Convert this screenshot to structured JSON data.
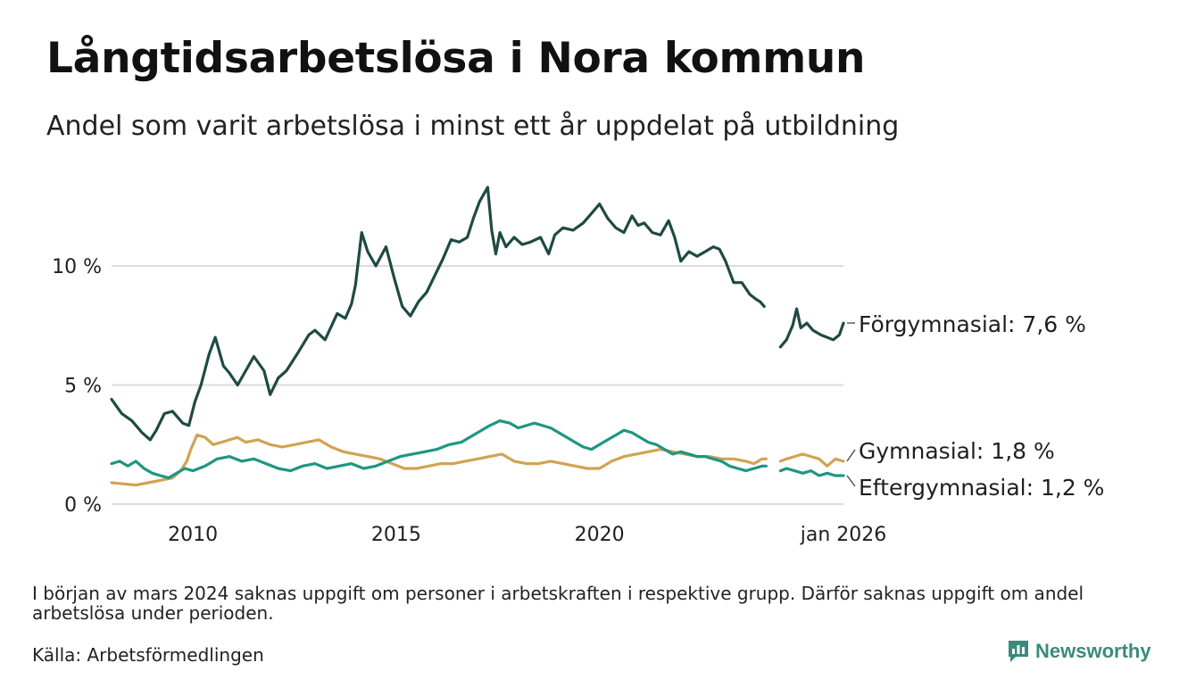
{
  "title": "Långtidsarbetslösa i Nora kommun",
  "subtitle": "Andel som varit arbetslösa i minst ett år uppdelat på utbildning",
  "note": "I början av mars 2024 saknas uppgift om personer i arbetskraften i respektive grupp. Därför saknas uppgift om andel arbetslösa under perioden.",
  "source": "Källa: Arbetsförmedlingen",
  "brand": "Newsworthy",
  "chart_data": {
    "type": "line",
    "title": "Långtidsarbetslösa i Nora kommun",
    "xlabel": "",
    "ylabel": "",
    "xlim": [
      2008.0,
      2026.0
    ],
    "ylim": [
      0,
      13.5
    ],
    "yticks": [
      0,
      5,
      10
    ],
    "ytick_labels": [
      "0 %",
      "5 %",
      "10 %"
    ],
    "xticks": [
      2010,
      2015,
      2020,
      2026.0
    ],
    "xtick_labels": [
      "2010",
      "2015",
      "2020",
      "jan 2026"
    ],
    "gap": [
      2024.15,
      2024.45
    ],
    "series": [
      {
        "name": "Förgymnasial",
        "label": "Förgymnasial: 7,6 %",
        "color": "#1f4a44",
        "x": [
          2008.0,
          2008.25,
          2008.5,
          2008.75,
          2008.95,
          2009.1,
          2009.3,
          2009.5,
          2009.75,
          2009.9,
          2010.05,
          2010.2,
          2010.4,
          2010.55,
          2010.75,
          2010.9,
          2011.1,
          2011.3,
          2011.5,
          2011.75,
          2011.9,
          2012.1,
          2012.3,
          2012.6,
          2012.85,
          2013.0,
          2013.25,
          2013.55,
          2013.75,
          2013.9,
          2014.0,
          2014.15,
          2014.3,
          2014.5,
          2014.75,
          2014.95,
          2015.15,
          2015.35,
          2015.55,
          2015.75,
          2015.95,
          2016.15,
          2016.35,
          2016.55,
          2016.75,
          2016.9,
          2017.05,
          2017.25,
          2017.35,
          2017.45,
          2017.55,
          2017.7,
          2017.9,
          2018.1,
          2018.3,
          2018.55,
          2018.75,
          2018.9,
          2019.1,
          2019.35,
          2019.6,
          2019.8,
          2020.0,
          2020.2,
          2020.4,
          2020.6,
          2020.8,
          2020.95,
          2021.1,
          2021.3,
          2021.5,
          2021.7,
          2021.85,
          2022.0,
          2022.2,
          2022.4,
          2022.6,
          2022.8,
          2022.95,
          2023.1,
          2023.3,
          2023.5,
          2023.7,
          2023.85,
          2023.95,
          2024.05,
          2024.45,
          2024.6,
          2024.75,
          2024.85,
          2024.95,
          2025.1,
          2025.25,
          2025.45,
          2025.6,
          2025.75,
          2025.9,
          2026.0
        ],
        "values": [
          4.4,
          3.8,
          3.5,
          3.0,
          2.7,
          3.1,
          3.8,
          3.9,
          3.4,
          3.3,
          4.3,
          5.0,
          6.3,
          7.0,
          5.8,
          5.5,
          5.0,
          5.6,
          6.2,
          5.6,
          4.6,
          5.3,
          5.6,
          6.4,
          7.1,
          7.3,
          6.9,
          8.0,
          7.8,
          8.4,
          9.2,
          11.4,
          10.6,
          10.0,
          10.8,
          9.5,
          8.3,
          7.9,
          8.5,
          8.9,
          9.6,
          10.3,
          11.1,
          11.0,
          11.2,
          12.0,
          12.7,
          13.3,
          11.5,
          10.5,
          11.4,
          10.8,
          11.2,
          10.9,
          11.0,
          11.2,
          10.5,
          11.3,
          11.6,
          11.5,
          11.8,
          12.2,
          12.6,
          12.0,
          11.6,
          11.4,
          12.1,
          11.7,
          11.8,
          11.4,
          11.3,
          11.9,
          11.2,
          10.2,
          10.6,
          10.4,
          10.6,
          10.8,
          10.7,
          10.2,
          9.3,
          9.3,
          8.8,
          8.6,
          8.5,
          8.3,
          6.6,
          6.9,
          7.5,
          8.2,
          7.4,
          7.6,
          7.3,
          7.1,
          7.0,
          6.9,
          7.1,
          7.6
        ]
      },
      {
        "name": "Gymnasial",
        "label": "Gymnasial: 1,8 %",
        "color": "#d1a352",
        "x": [
          2008.0,
          2008.3,
          2008.6,
          2008.9,
          2009.2,
          2009.5,
          2009.7,
          2009.85,
          2009.95,
          2010.1,
          2010.3,
          2010.5,
          2010.7,
          2010.9,
          2011.1,
          2011.3,
          2011.6,
          2011.9,
          2012.2,
          2012.5,
          2012.8,
          2013.1,
          2013.4,
          2013.7,
          2014.0,
          2014.3,
          2014.6,
          2014.9,
          2015.2,
          2015.5,
          2015.8,
          2016.1,
          2016.4,
          2016.7,
          2017.0,
          2017.3,
          2017.6,
          2017.9,
          2018.2,
          2018.5,
          2018.8,
          2019.1,
          2019.4,
          2019.7,
          2020.0,
          2020.3,
          2020.6,
          2020.9,
          2021.2,
          2021.5,
          2021.8,
          2022.1,
          2022.4,
          2022.7,
          2023.0,
          2023.3,
          2023.6,
          2023.8,
          2024.0,
          2024.1,
          2024.45,
          2024.6,
          2024.8,
          2025.0,
          2025.2,
          2025.4,
          2025.6,
          2025.8,
          2026.0
        ],
        "values": [
          0.9,
          0.85,
          0.8,
          0.9,
          1.0,
          1.1,
          1.4,
          1.8,
          2.3,
          2.9,
          2.8,
          2.5,
          2.6,
          2.7,
          2.8,
          2.6,
          2.7,
          2.5,
          2.4,
          2.5,
          2.6,
          2.7,
          2.4,
          2.2,
          2.1,
          2.0,
          1.9,
          1.7,
          1.5,
          1.5,
          1.6,
          1.7,
          1.7,
          1.8,
          1.9,
          2.0,
          2.1,
          1.8,
          1.7,
          1.7,
          1.8,
          1.7,
          1.6,
          1.5,
          1.5,
          1.8,
          2.0,
          2.1,
          2.2,
          2.3,
          2.2,
          2.1,
          2.0,
          2.0,
          1.9,
          1.9,
          1.8,
          1.7,
          1.9,
          1.9,
          1.8,
          1.9,
          2.0,
          2.1,
          2.0,
          1.9,
          1.6,
          1.9,
          1.8
        ]
      },
      {
        "name": "Eftergymnasial",
        "label": "Eftergymnasial: 1,2 %",
        "color": "#1e9683",
        "x": [
          2008.0,
          2008.2,
          2008.4,
          2008.6,
          2008.8,
          2009.0,
          2009.2,
          2009.4,
          2009.6,
          2009.8,
          2010.0,
          2010.3,
          2010.6,
          2010.9,
          2011.2,
          2011.5,
          2011.8,
          2012.1,
          2012.4,
          2012.7,
          2013.0,
          2013.3,
          2013.6,
          2013.9,
          2014.2,
          2014.5,
          2014.8,
          2015.1,
          2015.4,
          2015.7,
          2016.0,
          2016.3,
          2016.6,
          2016.9,
          2017.1,
          2017.3,
          2017.55,
          2017.8,
          2018.0,
          2018.2,
          2018.4,
          2018.6,
          2018.8,
          2019.0,
          2019.2,
          2019.4,
          2019.6,
          2019.8,
          2020.0,
          2020.2,
          2020.4,
          2020.6,
          2020.8,
          2021.0,
          2021.2,
          2021.4,
          2021.6,
          2021.8,
          2022.0,
          2022.2,
          2022.4,
          2022.6,
          2022.8,
          2023.0,
          2023.2,
          2023.4,
          2023.6,
          2023.8,
          2024.0,
          2024.1,
          2024.45,
          2024.6,
          2024.8,
          2025.0,
          2025.2,
          2025.4,
          2025.6,
          2025.8,
          2026.0
        ],
        "values": [
          1.7,
          1.8,
          1.6,
          1.8,
          1.5,
          1.3,
          1.2,
          1.1,
          1.3,
          1.5,
          1.4,
          1.6,
          1.9,
          2.0,
          1.8,
          1.9,
          1.7,
          1.5,
          1.4,
          1.6,
          1.7,
          1.5,
          1.6,
          1.7,
          1.5,
          1.6,
          1.8,
          2.0,
          2.1,
          2.2,
          2.3,
          2.5,
          2.6,
          2.9,
          3.1,
          3.3,
          3.5,
          3.4,
          3.2,
          3.3,
          3.4,
          3.3,
          3.2,
          3.0,
          2.8,
          2.6,
          2.4,
          2.3,
          2.5,
          2.7,
          2.9,
          3.1,
          3.0,
          2.8,
          2.6,
          2.5,
          2.3,
          2.1,
          2.2,
          2.1,
          2.0,
          2.0,
          1.9,
          1.8,
          1.6,
          1.5,
          1.4,
          1.5,
          1.6,
          1.6,
          1.4,
          1.5,
          1.4,
          1.3,
          1.4,
          1.2,
          1.3,
          1.2,
          1.2
        ]
      }
    ]
  }
}
